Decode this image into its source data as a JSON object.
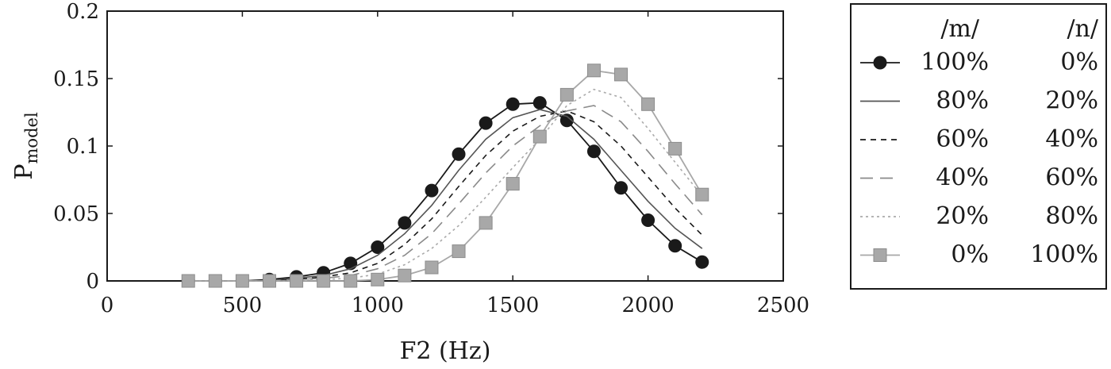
{
  "chart_data": {
    "type": "line",
    "xlabel": "F2 (Hz)",
    "ylabel": {
      "main": "P",
      "sub": "model"
    },
    "xlim": [
      0,
      2500
    ],
    "ylim": [
      0,
      0.2
    ],
    "xticks": [
      "0",
      "500",
      "1000",
      "1500",
      "2000",
      "2500"
    ],
    "yticks": [
      "0",
      "0.05",
      "0.1",
      "0.15",
      "0.2"
    ],
    "grid": false,
    "legend_position": "right-outside",
    "legend_headers": [
      "/m/",
      "/n/"
    ],
    "x": [
      300,
      400,
      500,
      600,
      700,
      800,
      900,
      1000,
      1100,
      1200,
      1300,
      1400,
      1500,
      1600,
      1700,
      1800,
      1900,
      2000,
      2100,
      2200
    ],
    "series": [
      {
        "m": "100%",
        "n": "0%",
        "color": "#1a1a1a",
        "style": "solid",
        "marker": "circle",
        "values": [
          0,
          0,
          0,
          0.001,
          0.003,
          0.006,
          0.013,
          0.025,
          0.043,
          0.067,
          0.094,
          0.117,
          0.131,
          0.132,
          0.119,
          0.096,
          0.069,
          0.045,
          0.026,
          0.014
        ]
      },
      {
        "m": "80%",
        "n": "20%",
        "color": "#555555",
        "style": "solid",
        "marker": "none",
        "values": [
          0,
          0,
          0,
          0,
          0.002,
          0.004,
          0.009,
          0.019,
          0.035,
          0.056,
          0.082,
          0.105,
          0.121,
          0.127,
          0.122,
          0.105,
          0.082,
          0.059,
          0.039,
          0.024
        ]
      },
      {
        "m": "60%",
        "n": "40%",
        "color": "#1a1a1a",
        "style": "dash",
        "marker": "none",
        "values": [
          0,
          0,
          0,
          0,
          0.001,
          0.003,
          0.006,
          0.013,
          0.027,
          0.046,
          0.07,
          0.093,
          0.111,
          0.122,
          0.126,
          0.118,
          0.1,
          0.077,
          0.054,
          0.034
        ]
      },
      {
        "m": "40%",
        "n": "60%",
        "color": "#8a8a8a",
        "style": "longdash",
        "marker": "none",
        "values": [
          0,
          0,
          0,
          0,
          0.001,
          0.002,
          0.004,
          0.009,
          0.019,
          0.035,
          0.057,
          0.08,
          0.1,
          0.115,
          0.126,
          0.13,
          0.118,
          0.096,
          0.072,
          0.049
        ]
      },
      {
        "m": "20%",
        "n": "80%",
        "color": "#aaaaaa",
        "style": "dot",
        "marker": "none",
        "values": [
          0,
          0,
          0,
          0,
          0,
          0.001,
          0.002,
          0.005,
          0.012,
          0.024,
          0.041,
          0.062,
          0.084,
          0.105,
          0.13,
          0.142,
          0.136,
          0.113,
          0.088,
          0.063
        ]
      },
      {
        "m": "0%",
        "n": "100%",
        "color": "#a8a8a8",
        "style": "solid",
        "marker": "square",
        "values": [
          0,
          0,
          0,
          0,
          0,
          0,
          0,
          0.001,
          0.004,
          0.01,
          0.022,
          0.043,
          0.072,
          0.107,
          0.138,
          0.156,
          0.153,
          0.131,
          0.098,
          0.064
        ]
      }
    ]
  }
}
